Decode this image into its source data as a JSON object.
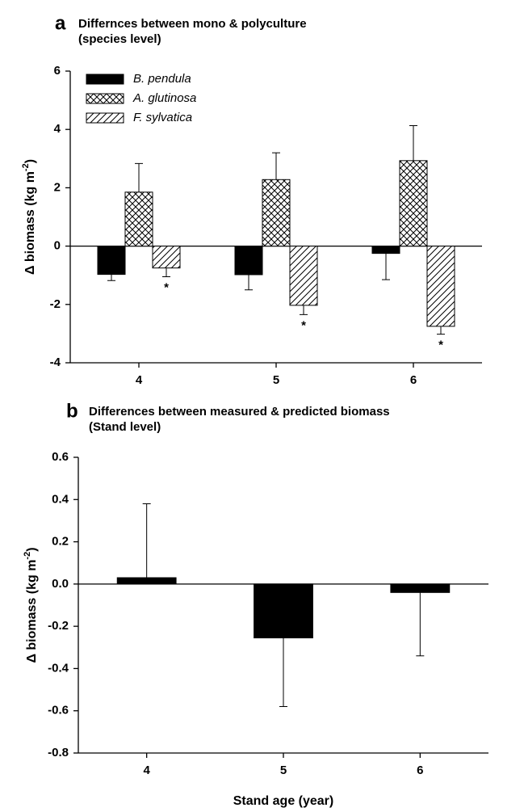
{
  "chart_data": [
    {
      "type": "bar",
      "panel": "a",
      "title": "Differnces between mono & polyculture",
      "subtitle": "(species level)",
      "ylabel": {
        "text": "Δ biomass (kg m",
        "sup": "-2",
        "tail": ")"
      },
      "categories": [
        "4",
        "5",
        "6"
      ],
      "series": [
        {
          "name": "B. pendula",
          "color": "#000000",
          "pattern": "solid",
          "values": [
            -0.97,
            -0.98,
            -0.25
          ],
          "errors": [
            0.21,
            0.52,
            0.9
          ]
        },
        {
          "name": "A. glutinosa",
          "color": "#000000",
          "pattern": "crosshatch",
          "values": [
            1.85,
            2.28,
            2.93
          ],
          "errors": [
            0.98,
            0.92,
            1.2
          ]
        },
        {
          "name": "F. sylvatica",
          "color": "#000000",
          "pattern": "diagonal",
          "values": [
            -0.75,
            -2.03,
            -2.75
          ],
          "errors": [
            0.3,
            0.32,
            0.27
          ],
          "markers": [
            "*",
            "*",
            "*"
          ]
        }
      ],
      "ylim": [
        -4,
        6
      ],
      "yticks": [
        -4,
        -2,
        0,
        2,
        4,
        6
      ],
      "grid": false,
      "legend": "upper left"
    },
    {
      "type": "bar",
      "panel": "b",
      "title": "Differences between measured & predicted biomass",
      "subtitle": "(Stand level)",
      "ylabel": {
        "text": "Δ biomass (kg m",
        "sup": "-2",
        "tail": ")"
      },
      "xlabel": "Stand age (year)",
      "categories": [
        "4",
        "5",
        "6"
      ],
      "values": [
        0.03,
        -0.255,
        -0.04
      ],
      "errors": [
        0.35,
        0.325,
        0.3
      ],
      "color": "#000000",
      "ylim": [
        -0.8,
        0.6
      ],
      "yticks": [
        -0.8,
        -0.6,
        -0.4,
        -0.2,
        {
          "value": 0,
          "label": "0.0"
        },
        0.2,
        0.4,
        0.6
      ],
      "grid": false
    }
  ]
}
